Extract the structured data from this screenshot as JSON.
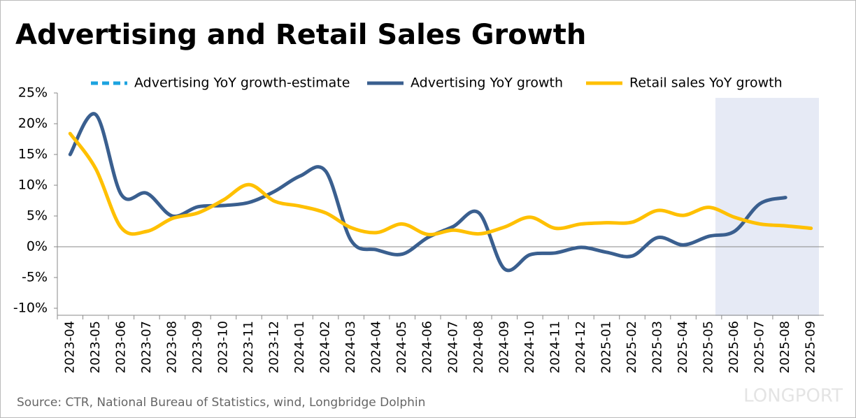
{
  "chart_data": {
    "type": "line",
    "title": "Advertising and Retail Sales Growth",
    "source": "Source: CTR, National Bureau of Statistics, wind, Longbridge Dolphin",
    "watermark": "LONGPORT",
    "categories": [
      "2023-04",
      "2023-05",
      "2023-06",
      "2023-07",
      "2023-08",
      "2023-09",
      "2023-10",
      "2023-11",
      "2023-12",
      "2024-01",
      "2024-02",
      "2024-03",
      "2024-04",
      "2024-05",
      "2024-06",
      "2024-07",
      "2024-08",
      "2024-09",
      "2024-10",
      "2024-11",
      "2024-12",
      "2025-01",
      "2025-02",
      "2025-03",
      "2025-04",
      "2025-05",
      "2025-06",
      "2025-07",
      "2025-08",
      "2025-09"
    ],
    "series": [
      {
        "name": "Advertising YoY growth-estimate",
        "color": "#1ca3e0",
        "dashed": true,
        "values": [
          null,
          null,
          null,
          null,
          null,
          null,
          null,
          null,
          null,
          null,
          null,
          null,
          null,
          null,
          null,
          null,
          null,
          null,
          null,
          null,
          null,
          null,
          null,
          null,
          null,
          null,
          null,
          null,
          null,
          null
        ]
      },
      {
        "name": "Advertising YoY growth",
        "color": "#3a5f8f",
        "values": [
          15,
          21.5,
          8.5,
          8.7,
          5,
          6.5,
          6.7,
          7.2,
          9,
          11.5,
          12.3,
          1,
          -0.5,
          -1.2,
          1.5,
          3.3,
          5.5,
          -3.6,
          -1.3,
          -1,
          -0.1,
          -0.9,
          -1.5,
          1.5,
          0.3,
          1.7,
          2.5,
          7,
          8,
          null
        ]
      },
      {
        "name": "Retail sales YoY growth",
        "color": "#ffc000",
        "values": [
          18.4,
          12.7,
          3.1,
          2.5,
          4.6,
          5.5,
          7.6,
          10.1,
          7.4,
          6.6,
          5.5,
          3.1,
          2.3,
          3.7,
          2,
          2.7,
          2.1,
          3.2,
          4.8,
          3,
          3.7,
          3.9,
          4,
          5.9,
          5.1,
          6.4,
          4.8,
          3.7,
          3.4,
          3
        ]
      }
    ],
    "ylim": [
      -10,
      25
    ],
    "yticks": [
      {
        "value": -10,
        "label": "-10%"
      },
      {
        "value": -5,
        "label": "-5%"
      },
      {
        "value": 0,
        "label": "0%"
      },
      {
        "value": 5,
        "label": "5%"
      },
      {
        "value": 10,
        "label": "10%"
      },
      {
        "value": 15,
        "label": "15%"
      },
      {
        "value": 20,
        "label": "20%"
      },
      {
        "value": 25,
        "label": "25%"
      }
    ]
  }
}
